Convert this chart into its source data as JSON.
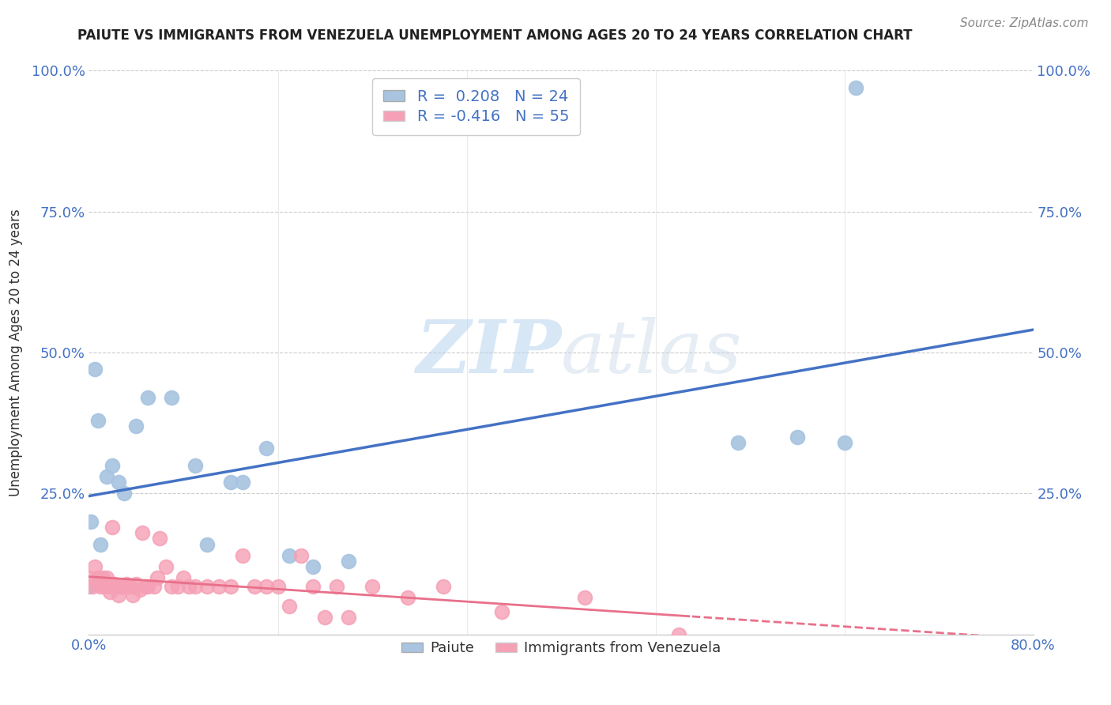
{
  "title": "PAIUTE VS IMMIGRANTS FROM VENEZUELA UNEMPLOYMENT AMONG AGES 20 TO 24 YEARS CORRELATION CHART",
  "source": "Source: ZipAtlas.com",
  "ylabel": "Unemployment Among Ages 20 to 24 years",
  "xlim": [
    0.0,
    0.8
  ],
  "ylim": [
    0.0,
    1.0
  ],
  "paiute_color": "#a8c4e0",
  "venezuela_color": "#f5a0b5",
  "paiute_R": 0.208,
  "paiute_N": 24,
  "venezuela_R": -0.416,
  "venezuela_N": 55,
  "trendline_paiute_color": "#4472c4",
  "trendline_venezuela_color": "#e8708a",
  "watermark_zip": "ZIP",
  "watermark_atlas": "atlas",
  "paiute_x": [
    0.002,
    0.005,
    0.008,
    0.01,
    0.015,
    0.02,
    0.025,
    0.03,
    0.04,
    0.05,
    0.07,
    0.09,
    0.1,
    0.12,
    0.13,
    0.15,
    0.17,
    0.19,
    0.22,
    0.55,
    0.6,
    0.64,
    0.65,
    0.0
  ],
  "paiute_y": [
    0.2,
    0.47,
    0.38,
    0.16,
    0.28,
    0.3,
    0.27,
    0.25,
    0.37,
    0.42,
    0.42,
    0.3,
    0.16,
    0.27,
    0.27,
    0.33,
    0.14,
    0.12,
    0.13,
    0.34,
    0.35,
    0.34,
    0.97,
    0.085
  ],
  "venezuela_x": [
    0.0,
    0.003,
    0.005,
    0.007,
    0.008,
    0.01,
    0.012,
    0.013,
    0.015,
    0.017,
    0.018,
    0.02,
    0.022,
    0.024,
    0.025,
    0.027,
    0.028,
    0.03,
    0.032,
    0.033,
    0.035,
    0.037,
    0.04,
    0.043,
    0.045,
    0.048,
    0.05,
    0.055,
    0.058,
    0.06,
    0.065,
    0.07,
    0.075,
    0.08,
    0.085,
    0.09,
    0.1,
    0.11,
    0.12,
    0.13,
    0.14,
    0.15,
    0.16,
    0.17,
    0.18,
    0.19,
    0.2,
    0.21,
    0.22,
    0.24,
    0.27,
    0.3,
    0.35,
    0.42,
    0.5
  ],
  "venezuela_y": [
    0.1,
    0.085,
    0.12,
    0.09,
    0.1,
    0.085,
    0.1,
    0.085,
    0.1,
    0.085,
    0.075,
    0.19,
    0.09,
    0.085,
    0.07,
    0.085,
    0.085,
    0.085,
    0.09,
    0.085,
    0.085,
    0.07,
    0.09,
    0.08,
    0.18,
    0.085,
    0.085,
    0.085,
    0.1,
    0.17,
    0.12,
    0.085,
    0.085,
    0.1,
    0.085,
    0.085,
    0.085,
    0.085,
    0.085,
    0.14,
    0.085,
    0.085,
    0.085,
    0.05,
    0.14,
    0.085,
    0.03,
    0.085,
    0.03,
    0.085,
    0.065,
    0.085,
    0.04,
    0.065,
    0.0
  ]
}
